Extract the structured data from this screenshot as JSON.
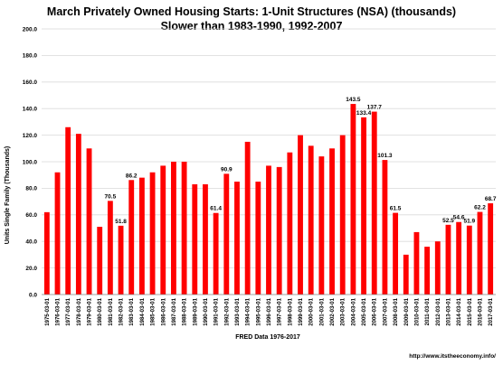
{
  "chart_data": {
    "type": "bar",
    "title": "March Privately Owned Housing Starts: 1-Unit Structures (NSA) (thousands)",
    "subtitle": "Slower than 1983-1990, 1992-2007",
    "ylabel": "Units Single Family (Thousands)",
    "xlabel": "FRED  Data 1976-2017",
    "footer": "http://www.itstheeconomy.info/",
    "ylim": [
      0,
      200
    ],
    "yticks": [
      "0.0",
      "20.0",
      "40.0",
      "60.0",
      "80.0",
      "100.0",
      "120.0",
      "140.0",
      "160.0",
      "180.0",
      "200.0"
    ],
    "grid": true,
    "bar_color": "#ff0000",
    "categories": [
      "1975-03-01",
      "1976-03-01",
      "1977-03-01",
      "1978-03-01",
      "1979-03-01",
      "1980-03-01",
      "1981-03-01",
      "1982-03-01",
      "1983-03-01",
      "1984-03-01",
      "1985-03-01",
      "1986-03-01",
      "1987-03-01",
      "1988-03-01",
      "1989-03-01",
      "1990-03-01",
      "1991-03-01",
      "1992-03-01",
      "1993-03-01",
      "1994-03-01",
      "1995-03-01",
      "1996-03-01",
      "1997-03-01",
      "1998-03-01",
      "1999-03-01",
      "2000-03-01",
      "2001-03-01",
      "2002-03-01",
      "2003-03-01",
      "2004-03-01",
      "2005-03-01",
      "2006-03-01",
      "2007-03-01",
      "2008-03-01",
      "2009-03-01",
      "2010-03-01",
      "2011-03-01",
      "2012-03-01",
      "2013-03-01",
      "2014-03-01",
      "2015-03-01",
      "2016-03-01",
      "2017-03-01"
    ],
    "values": [
      62,
      92,
      126,
      121,
      110,
      51,
      70.5,
      51.8,
      86.2,
      88,
      92,
      97,
      100,
      100,
      83,
      83,
      61.4,
      90.9,
      85,
      115,
      85,
      97,
      96,
      107,
      120,
      112,
      104,
      110,
      120,
      143.5,
      133.4,
      137.7,
      101.3,
      61.5,
      30,
      47,
      36,
      40,
      52.5,
      54.6,
      51.9,
      62.2,
      68.7
    ],
    "data_labels": [
      {
        "index": 6,
        "text": "70.5"
      },
      {
        "index": 7,
        "text": "51.8"
      },
      {
        "index": 8,
        "text": "86.2"
      },
      {
        "index": 16,
        "text": "61.4"
      },
      {
        "index": 17,
        "text": "90.9"
      },
      {
        "index": 29,
        "text": "143.5"
      },
      {
        "index": 30,
        "text": "133.4"
      },
      {
        "index": 31,
        "text": "137.7"
      },
      {
        "index": 32,
        "text": "101.3"
      },
      {
        "index": 33,
        "text": "61.5"
      },
      {
        "index": 38,
        "text": "52.5"
      },
      {
        "index": 39,
        "text": "54.6"
      },
      {
        "index": 40,
        "text": "51.9"
      },
      {
        "index": 41,
        "text": "62.2"
      },
      {
        "index": 42,
        "text": "68.7"
      }
    ]
  }
}
